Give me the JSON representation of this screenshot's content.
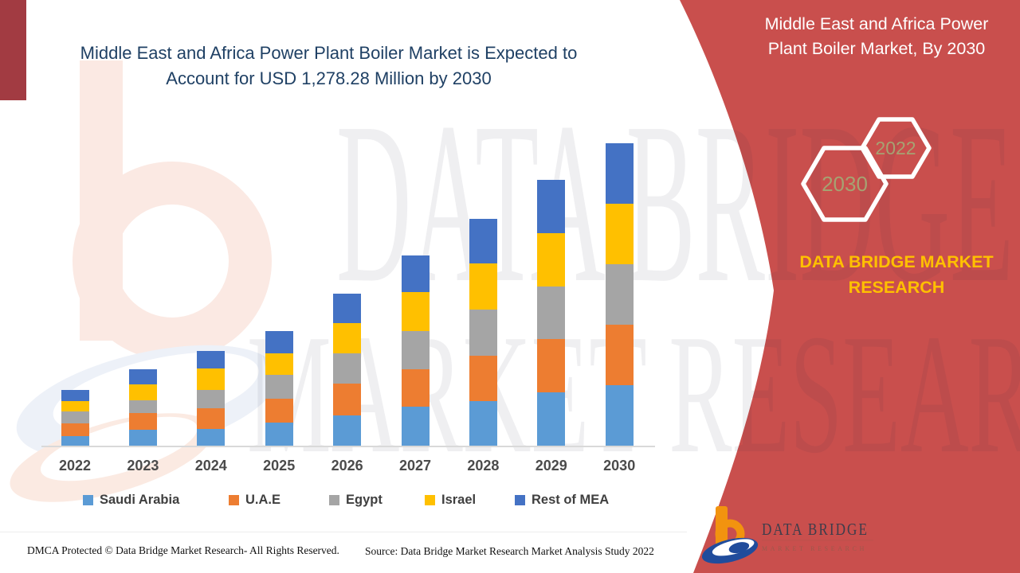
{
  "header": {
    "title_line1": "Middle East and Africa Power Plant Boiler Market is Expected to",
    "title_line2": "Account for USD 1,278.28 Million by 2030"
  },
  "panel": {
    "title_line1": "Middle East and Africa Power",
    "title_line2": "Plant Boiler Market, By 2030",
    "hexagon_back_label": "2022",
    "hexagon_front_label": "2030",
    "brand_text": "DATA BRIDGE MARKET RESEARCH"
  },
  "chart_data": {
    "type": "bar",
    "stacked": true,
    "title": "Middle East and Africa Power Plant Boiler Market is Expected to Account for USD 1,278.28 Million by 2030",
    "unit": "USD Million",
    "categories": [
      "2022",
      "2023",
      "2024",
      "2025",
      "2026",
      "2027",
      "2028",
      "2029",
      "2030"
    ],
    "series": [
      {
        "name": "Saudi Arabia",
        "color": "#5B9BD5",
        "values": [
          42.5,
          69.5,
          70.8,
          98.8,
          130.5,
          166.3,
          188.9,
          225.0,
          255.7
        ]
      },
      {
        "name": "U.A.E",
        "color": "#ED7D31",
        "values": [
          53.0,
          68.8,
          88.7,
          101.2,
          131.5,
          157.5,
          193.3,
          225.0,
          255.7
        ]
      },
      {
        "name": "Egypt",
        "color": "#A5A5A5",
        "values": [
          50.6,
          56.0,
          76.6,
          98.8,
          129.2,
          160.9,
          194.6,
          221.6,
          255.6
        ]
      },
      {
        "name": "Israel",
        "color": "#FFC000",
        "values": [
          44.9,
          64.1,
          90.1,
          92.4,
          127.2,
          162.9,
          193.3,
          225.0,
          255.6
        ]
      },
      {
        "name": "Rest of MEA",
        "color": "#4472C4",
        "values": [
          45.2,
          64.1,
          73.2,
          92.1,
          123.8,
          156.2,
          188.9,
          225.0,
          255.68
        ]
      }
    ],
    "annotations": [
      "2030 total = USD 1,278.28 Million"
    ],
    "ylim": [
      0,
      1300
    ],
    "gridlines": false,
    "legend_position": "bottom"
  },
  "watermark": {
    "line1": "DATA BRIDGE",
    "line2": "MARKET RESEARCH"
  },
  "logo": {
    "name": "DATA BRIDGE",
    "subtitle": "MARKET RESEARCH"
  },
  "footer": {
    "left": "DMCA Protected © Data Bridge Market Research- All Rights Reserved.",
    "source": "Source: Data Bridge Market Research Market Analysis Study 2022"
  },
  "theme": {
    "panel_red": "#C94F4D",
    "accent_maroon": "#A23B42",
    "title_navy": "#1F4064",
    "brand_yellow": "#FFC000",
    "hex_label_olive": "#A6A272"
  }
}
